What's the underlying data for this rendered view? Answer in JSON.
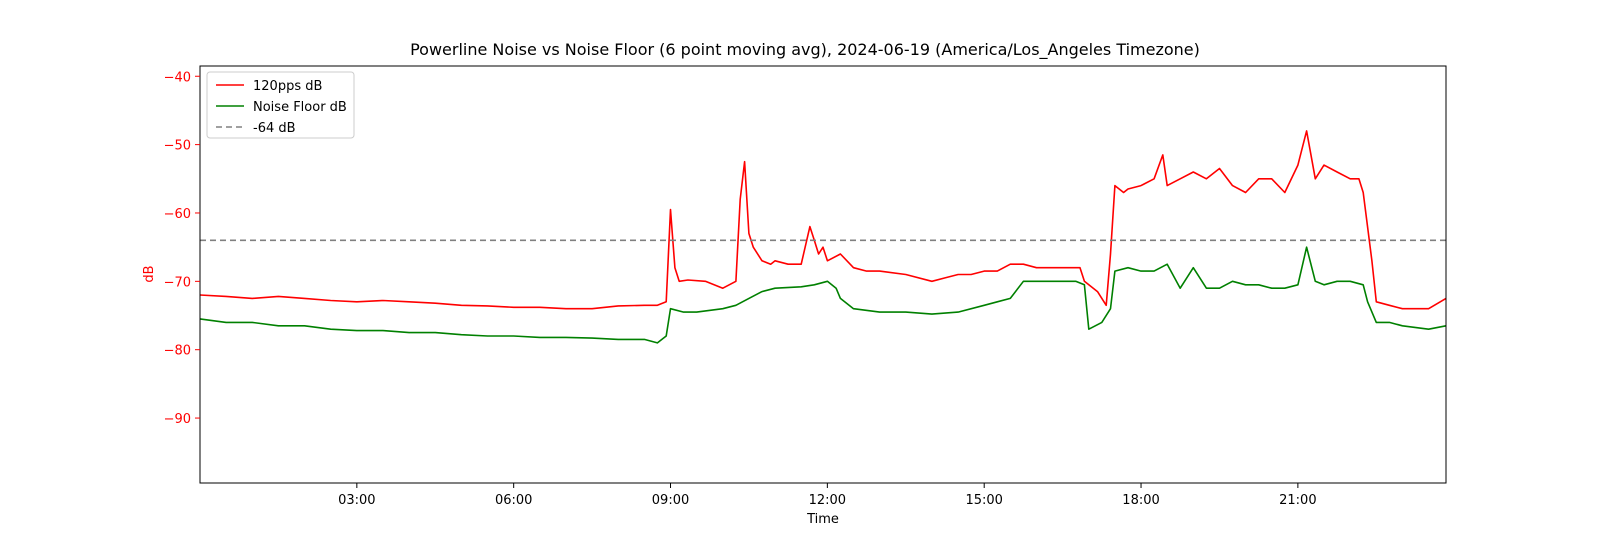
{
  "chart_data": {
    "type": "line",
    "title": "Powerline Noise vs Noise Floor (6 point moving avg), 2024-06-19 (America/Los_Angeles Timezone)",
    "xlabel": "Time",
    "ylabel": "dB",
    "ylabel_color": "#ff0000",
    "xlim": [
      "00:00",
      "23:50"
    ],
    "ylim": [
      -99.5,
      -38.5
    ],
    "x_ticks": [
      "03:00",
      "06:00",
      "09:00",
      "12:00",
      "15:00",
      "18:00",
      "21:00"
    ],
    "y_ticks": [
      -40,
      -50,
      -60,
      -70,
      -80,
      -90
    ],
    "y_tick_labels": [
      "−40",
      "−50",
      "−60",
      "−70",
      "−80",
      "−90"
    ],
    "grid": false,
    "legend_position": "top-left",
    "series": [
      {
        "name": "120pps dB",
        "color": "#ff0000",
        "style": "solid",
        "x": [
          "00:00",
          "00:30",
          "01:00",
          "01:30",
          "02:00",
          "02:30",
          "03:00",
          "03:30",
          "04:00",
          "04:30",
          "05:00",
          "05:30",
          "06:00",
          "06:30",
          "07:00",
          "07:30",
          "08:00",
          "08:30",
          "08:45",
          "08:55",
          "09:00",
          "09:05",
          "09:10",
          "09:20",
          "09:40",
          "10:00",
          "10:15",
          "10:20",
          "10:25",
          "10:30",
          "10:35",
          "10:45",
          "10:55",
          "11:00",
          "11:15",
          "11:30",
          "11:40",
          "11:45",
          "11:50",
          "11:55",
          "12:00",
          "12:15",
          "12:30",
          "12:45",
          "13:00",
          "13:30",
          "14:00",
          "14:15",
          "14:30",
          "14:45",
          "15:00",
          "15:15",
          "15:30",
          "15:45",
          "16:00",
          "16:15",
          "16:30",
          "16:50",
          "16:55",
          "17:10",
          "17:20",
          "17:25",
          "17:30",
          "17:40",
          "17:45",
          "18:00",
          "18:15",
          "18:25",
          "18:30",
          "18:45",
          "19:00",
          "19:15",
          "19:30",
          "19:45",
          "20:00",
          "20:15",
          "20:30",
          "20:45",
          "21:00",
          "21:10",
          "21:20",
          "21:30",
          "21:45",
          "22:00",
          "22:10",
          "22:15",
          "22:25",
          "22:30",
          "22:45",
          "23:00",
          "23:30",
          "23:50"
        ],
        "values": [
          -72,
          -72.2,
          -72.5,
          -72.2,
          -72.5,
          -72.8,
          -73,
          -72.8,
          -73,
          -73.2,
          -73.5,
          -73.6,
          -73.8,
          -73.8,
          -74,
          -74,
          -73.6,
          -73.5,
          -73.5,
          -73,
          -59.5,
          -68,
          -70,
          -69.8,
          -70,
          -71,
          -70,
          -58,
          -52.5,
          -63,
          -65,
          -67,
          -67.5,
          -67,
          -67.5,
          -67.5,
          -62,
          -64,
          -66,
          -65,
          -67,
          -66,
          -68,
          -68.5,
          -68.5,
          -69,
          -70,
          -69.5,
          -69,
          -69,
          -68.5,
          -68.5,
          -67.5,
          -67.5,
          -68,
          -68,
          -68,
          -68,
          -70,
          -71.5,
          -73.5,
          -66,
          -56,
          -57,
          -56.5,
          -56,
          -55,
          -51.5,
          -56,
          -55,
          -54,
          -55,
          -53.5,
          -56,
          -57,
          -55,
          -55,
          -57,
          -53,
          -48,
          -55,
          -53,
          -54,
          -55,
          -55,
          -57,
          -67,
          -73,
          -73.5,
          -74,
          -74,
          -72.5
        ]
      },
      {
        "name": "Noise Floor dB",
        "color": "#008000",
        "style": "solid",
        "x": [
          "00:00",
          "00:30",
          "01:00",
          "01:30",
          "02:00",
          "02:30",
          "03:00",
          "03:30",
          "04:00",
          "04:30",
          "05:00",
          "05:30",
          "06:00",
          "06:30",
          "07:00",
          "07:30",
          "08:00",
          "08:30",
          "08:45",
          "08:55",
          "09:00",
          "09:15",
          "09:30",
          "10:00",
          "10:15",
          "10:30",
          "10:45",
          "11:00",
          "11:30",
          "11:45",
          "12:00",
          "12:10",
          "12:15",
          "12:30",
          "13:00",
          "13:30",
          "14:00",
          "14:30",
          "15:00",
          "15:15",
          "15:30",
          "15:45",
          "16:00",
          "16:30",
          "16:45",
          "16:55",
          "17:00",
          "17:15",
          "17:25",
          "17:30",
          "17:45",
          "18:00",
          "18:15",
          "18:30",
          "18:45",
          "19:00",
          "19:15",
          "19:30",
          "19:45",
          "20:00",
          "20:15",
          "20:30",
          "20:45",
          "21:00",
          "21:10",
          "21:20",
          "21:30",
          "21:45",
          "22:00",
          "22:15",
          "22:20",
          "22:30",
          "22:45",
          "23:00",
          "23:30",
          "23:50"
        ],
        "values": [
          -75.5,
          -76,
          -76,
          -76.5,
          -76.5,
          -77,
          -77.2,
          -77.2,
          -77.5,
          -77.5,
          -77.8,
          -78,
          -78,
          -78.2,
          -78.2,
          -78.3,
          -78.5,
          -78.5,
          -79,
          -78,
          -74,
          -74.5,
          -74.5,
          -74,
          -73.5,
          -72.5,
          -71.5,
          -71,
          -70.8,
          -70.5,
          -70,
          -71,
          -72.5,
          -74,
          -74.5,
          -74.5,
          -74.8,
          -74.5,
          -73.5,
          -73,
          -72.5,
          -70,
          -70,
          -70,
          -70,
          -70.5,
          -77,
          -76,
          -74,
          -68.5,
          -68,
          -68.5,
          -68.5,
          -67.5,
          -71,
          -68,
          -71,
          -71,
          -70,
          -70.5,
          -70.5,
          -71,
          -71,
          -70.5,
          -65,
          -70,
          -70.5,
          -70,
          -70,
          -70.5,
          -73,
          -76,
          -76,
          -76.5,
          -77,
          -76.5
        ]
      },
      {
        "name": "-64 dB",
        "color": "#808080",
        "style": "dashed",
        "x": [
          "00:00",
          "23:50"
        ],
        "values": [
          -64,
          -64
        ]
      }
    ]
  }
}
